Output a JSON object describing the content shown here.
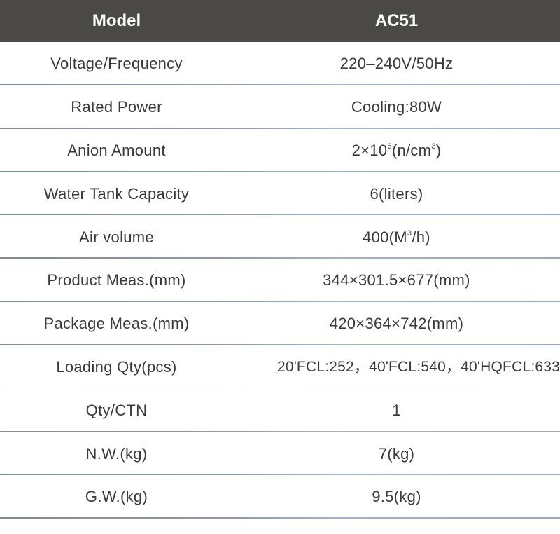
{
  "header": {
    "left": "Model",
    "right": "AC51"
  },
  "rows": [
    {
      "label": "Voltage/Frequency",
      "value": "220–240V/50Hz"
    },
    {
      "label": "Rated Power",
      "value": "Cooling:80W"
    },
    {
      "label": "Anion Amount",
      "value_parts": {
        "a": "2×10",
        "sup1": "6",
        "b": "(n/cm",
        "sup2": "3",
        "c": ")"
      }
    },
    {
      "label": "Water Tank Capacity",
      "value": "6(liters)"
    },
    {
      "label": "Air volume",
      "value_parts": {
        "a": "400(M",
        "sup1": "3",
        "b": "/h)"
      }
    },
    {
      "label": "Product Meas.(mm)",
      "value": "344×301.5×677(mm)"
    },
    {
      "label": "Package Meas.(mm)",
      "value": "420×364×742(mm)"
    },
    {
      "label": "Loading Qty(pcs)",
      "value": "20'FCL:252，40'FCL:540，40'HQFCL:633"
    },
    {
      "label": "Qty/CTN",
      "value": "1"
    },
    {
      "label": "N.W.(kg)",
      "value": "7(kg)"
    },
    {
      "label": "G.W.(kg)",
      "value": "9.5(kg)"
    }
  ]
}
